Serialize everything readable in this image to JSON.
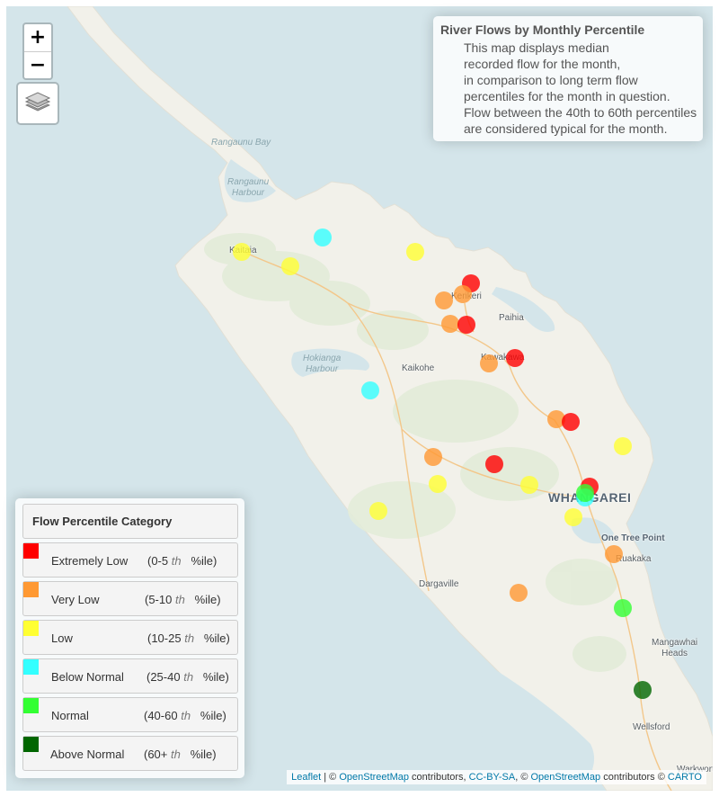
{
  "controls": {
    "zoom_in": "+",
    "zoom_out": "−",
    "layers_icon": "layers-icon"
  },
  "info": {
    "title": "River Flows by Monthly Percentile",
    "lines": [
      "This map displays median",
      "recorded flow for the month,",
      "in comparison to long term flow",
      "percentiles for the month in question.",
      "Flow between the 40th to 60th percentiles",
      "are considered typical for the month."
    ]
  },
  "legend": {
    "title": "Flow Percentile Category",
    "categories": [
      {
        "name": "Extremely Low",
        "range_open": "(0-5",
        "th": "th",
        "range_close": "%ile)",
        "color": "#ff0000"
      },
      {
        "name": "Very Low",
        "range_open": "(5-10",
        "th": "th",
        "range_close": "%ile)",
        "color": "#ff9933"
      },
      {
        "name": "Low",
        "range_open": "(10-25",
        "th": "th",
        "range_close": "%ile)",
        "color": "#ffff33"
      },
      {
        "name": "Below Normal",
        "range_open": "(25-40",
        "th": "th",
        "range_close": "%ile)",
        "color": "#33ffff"
      },
      {
        "name": "Normal",
        "range_open": "(40-60",
        "th": "th",
        "range_close": "%ile)",
        "color": "#33ff33"
      },
      {
        "name": "Above Normal",
        "range_open": "(60+",
        "th": "th",
        "range_close": "%ile)",
        "color": "#006600"
      }
    ]
  },
  "places": {
    "rangaunu_bay": "Rangaunu Bay",
    "rangaunu_harbour_1": "Rangaunu",
    "rangaunu_harbour_2": "Harbour",
    "hokianga_harbour_1": "Hokianga",
    "hokianga_harbour_2": "Harbour",
    "kaitaia": "Kaitaia",
    "kerikeri": "Kerikeri",
    "paihia": "Paihia",
    "kaikohe": "Kaikohe",
    "kawakawa": "Kawakawa",
    "whangarei": "WHANGAREI",
    "one_tree_point": "One Tree Point",
    "ruakaka": "Ruakaka",
    "dargaville": "Dargaville",
    "mangawhai_heads_1": "Mangawhai",
    "mangawhai_heads_2": "Heads",
    "wellsford": "Wellsford",
    "warkworth": "Warkworth"
  },
  "attribution": {
    "leaflet": "Leaflet",
    "sep1": " | © ",
    "osm1": "OpenStreetMap",
    "contrib1": " contributors, ",
    "ccbysa": "CC-BY-SA",
    "sep2": ", © ",
    "osm2": "OpenStreetMap",
    "contrib2": " contributors © ",
    "carto": "CARTO"
  },
  "stations": [
    {
      "category": "Below Normal"
    },
    {
      "category": "Low"
    },
    {
      "category": "Low"
    },
    {
      "category": "Low"
    },
    {
      "category": "Extremely Low"
    },
    {
      "category": "Very Low"
    },
    {
      "category": "Very Low"
    },
    {
      "category": "Very Low"
    },
    {
      "category": "Extremely Low"
    },
    {
      "category": "Extremely Low"
    },
    {
      "category": "Very Low"
    },
    {
      "category": "Below Normal"
    },
    {
      "category": "Very Low"
    },
    {
      "category": "Extremely Low"
    },
    {
      "category": "Low"
    },
    {
      "category": "Very Low"
    },
    {
      "category": "Extremely Low"
    },
    {
      "category": "Low"
    },
    {
      "category": "Low"
    },
    {
      "category": "Extremely Low"
    },
    {
      "category": "Below Normal"
    },
    {
      "category": "Normal"
    },
    {
      "category": "Low"
    },
    {
      "category": "Low"
    },
    {
      "category": "Very Low"
    },
    {
      "category": "Very Low"
    },
    {
      "category": "Normal"
    },
    {
      "category": "Above Normal"
    }
  ]
}
